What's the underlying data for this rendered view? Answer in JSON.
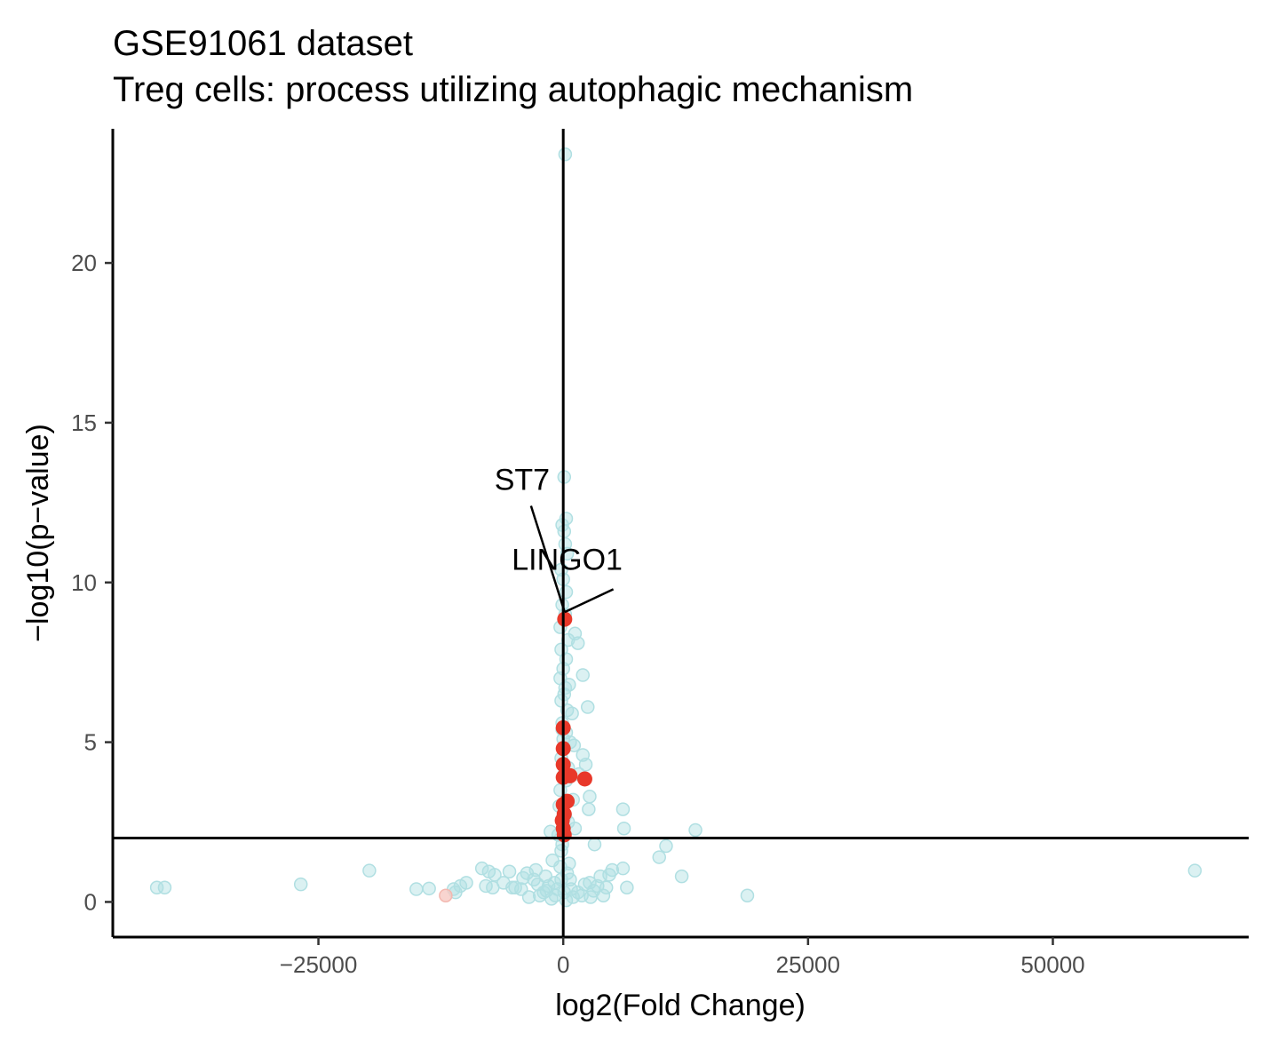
{
  "chart_data": {
    "type": "scatter",
    "title": "GSE91061 dataset",
    "subtitle": "Treg cells: process utilizing autophagic mechanism",
    "xlabel": "log2(Fold Change)",
    "ylabel": "−log10(p−value)",
    "xlim": [
      -46000,
      70000
    ],
    "ylim": [
      -1.1,
      24.2
    ],
    "x_ticks": [
      -25000,
      0,
      25000,
      50000
    ],
    "x_tick_labels": [
      "−25000",
      "0",
      "25000",
      "50000"
    ],
    "y_ticks": [
      0,
      5,
      10,
      15,
      20
    ],
    "y_tick_labels": [
      "0",
      "5",
      "10",
      "15",
      "20"
    ],
    "vline_x": 0,
    "hline_y": 2,
    "grid": false,
    "colors": {
      "background": "#B0DFE2",
      "highlight": "#E8382A",
      "axis": "#000000"
    },
    "series": [
      {
        "role": "background",
        "points": [
          [
            200,
            23.4
          ],
          [
            100,
            13.3
          ],
          [
            300,
            12
          ],
          [
            -100,
            11.8
          ],
          [
            100,
            11.6
          ],
          [
            200,
            11.2
          ],
          [
            400,
            10.9
          ],
          [
            -200,
            10.4
          ],
          [
            0,
            10.1
          ],
          [
            300,
            9.7
          ],
          [
            -100,
            9.3
          ],
          [
            200,
            9
          ],
          [
            1200,
            8.4
          ],
          [
            1500,
            8.1
          ],
          [
            500,
            8.2
          ],
          [
            -200,
            7.9
          ],
          [
            300,
            7.6
          ],
          [
            0,
            7.3
          ],
          [
            2000,
            7.1
          ],
          [
            -300,
            7
          ],
          [
            600,
            6.8
          ],
          [
            100,
            6.5
          ],
          [
            2500,
            6.1
          ],
          [
            -200,
            6.3
          ],
          [
            400,
            6
          ],
          [
            900,
            5.9
          ],
          [
            -100,
            5.6
          ],
          [
            300,
            5.3
          ],
          [
            0,
            5.1
          ],
          [
            700,
            5
          ],
          [
            1100,
            4.9
          ],
          [
            2000,
            4.6
          ],
          [
            2300,
            4.3
          ],
          [
            -200,
            4.5
          ],
          [
            500,
            4.2
          ],
          [
            1600,
            4
          ],
          [
            300,
            3.8
          ],
          [
            2700,
            3.3
          ],
          [
            -300,
            3.5
          ],
          [
            1000,
            3.2
          ],
          [
            2600,
            2.9
          ],
          [
            6100,
            2.9
          ],
          [
            -100,
            2.6
          ],
          [
            500,
            2.5
          ],
          [
            1200,
            2.3
          ],
          [
            6200,
            2.3
          ],
          [
            13500,
            2.25
          ],
          [
            -1300,
            2.2
          ],
          [
            -500,
            2.1
          ],
          [
            3200,
            1.8
          ],
          [
            10500,
            1.75
          ],
          [
            -200,
            1.6
          ],
          [
            9800,
            1.4
          ],
          [
            -1100,
            1.3
          ],
          [
            600,
            1.2
          ],
          [
            -300,
            1.1
          ],
          [
            -8300,
            1.05
          ],
          [
            -7600,
            0.95
          ],
          [
            -19800,
            0.98
          ],
          [
            6100,
            1.05
          ],
          [
            5000,
            1
          ],
          [
            4700,
            0.85
          ],
          [
            12100,
            0.8
          ],
          [
            -2800,
            1
          ],
          [
            -5500,
            0.95
          ],
          [
            -7000,
            0.85
          ],
          [
            -3700,
            0.9
          ],
          [
            -1800,
            0.8
          ],
          [
            3800,
            0.8
          ],
          [
            -9900,
            0.6
          ],
          [
            -10500,
            0.5
          ],
          [
            -3000,
            0.7
          ],
          [
            -4100,
            0.75
          ],
          [
            -6100,
            0.6
          ],
          [
            -2600,
            0.55
          ],
          [
            -5200,
            0.45
          ],
          [
            -4300,
            0.4
          ],
          [
            -4900,
            0.45
          ],
          [
            -7900,
            0.5
          ],
          [
            -7200,
            0.45
          ],
          [
            -11200,
            0.4
          ],
          [
            -11000,
            0.3
          ],
          [
            -15000,
            0.4
          ],
          [
            -13700,
            0.42
          ],
          [
            -26800,
            0.55
          ],
          [
            -40700,
            0.45
          ],
          [
            -41500,
            0.45
          ],
          [
            2700,
            0.6
          ],
          [
            3500,
            0.5
          ],
          [
            4400,
            0.45
          ],
          [
            3100,
            0.35
          ],
          [
            4100,
            0.2
          ],
          [
            2800,
            0.15
          ],
          [
            6500,
            0.45
          ],
          [
            -2000,
            0.3
          ],
          [
            -1500,
            0.5
          ],
          [
            -800,
            0.2
          ],
          [
            800,
            0.4
          ],
          [
            1500,
            0.3
          ],
          [
            2200,
            0.55
          ],
          [
            -2400,
            0.2
          ],
          [
            -1200,
            0.1
          ],
          [
            300,
            0.05
          ],
          [
            -3500,
            0.15
          ],
          [
            18800,
            0.2
          ],
          [
            64500,
            0.98
          ],
          [
            -200,
            0.7
          ],
          [
            400,
            0.9
          ],
          [
            -600,
            0.4
          ],
          [
            1000,
            0.15
          ],
          [
            100,
            0.3
          ],
          [
            -900,
            0.6
          ],
          [
            700,
            0.7
          ],
          [
            -1700,
            0.35
          ],
          [
            1900,
            0.2
          ],
          [
            -100,
            1.8
          ],
          [
            200,
            2.7
          ],
          [
            -400,
            3
          ],
          [
            100,
            4
          ],
          [
            -100,
            5.4
          ],
          [
            200,
            6.7
          ],
          [
            -300,
            8.6
          ]
        ]
      },
      {
        "role": "highlight",
        "points": [
          [
            150,
            8.85
          ],
          [
            0,
            5.45
          ],
          [
            0,
            4.8
          ],
          [
            0,
            4.3
          ],
          [
            700,
            3.95
          ],
          [
            2200,
            3.85
          ],
          [
            0,
            3.9
          ],
          [
            400,
            3.15
          ],
          [
            0,
            3.05
          ],
          [
            100,
            2.75
          ],
          [
            -100,
            2.55
          ],
          [
            0,
            2.3
          ],
          [
            100,
            2.1
          ]
        ],
        "faded_points": [
          [
            -12000,
            0.2
          ]
        ]
      }
    ],
    "annotations": [
      {
        "text": "ST7",
        "x": -4200,
        "y": 12.9,
        "target_x": 150,
        "target_y": 8.85
      },
      {
        "text": "LINGO1",
        "x": 400,
        "y": 10.4,
        "target_x": 150,
        "target_y": 8.85
      }
    ]
  }
}
